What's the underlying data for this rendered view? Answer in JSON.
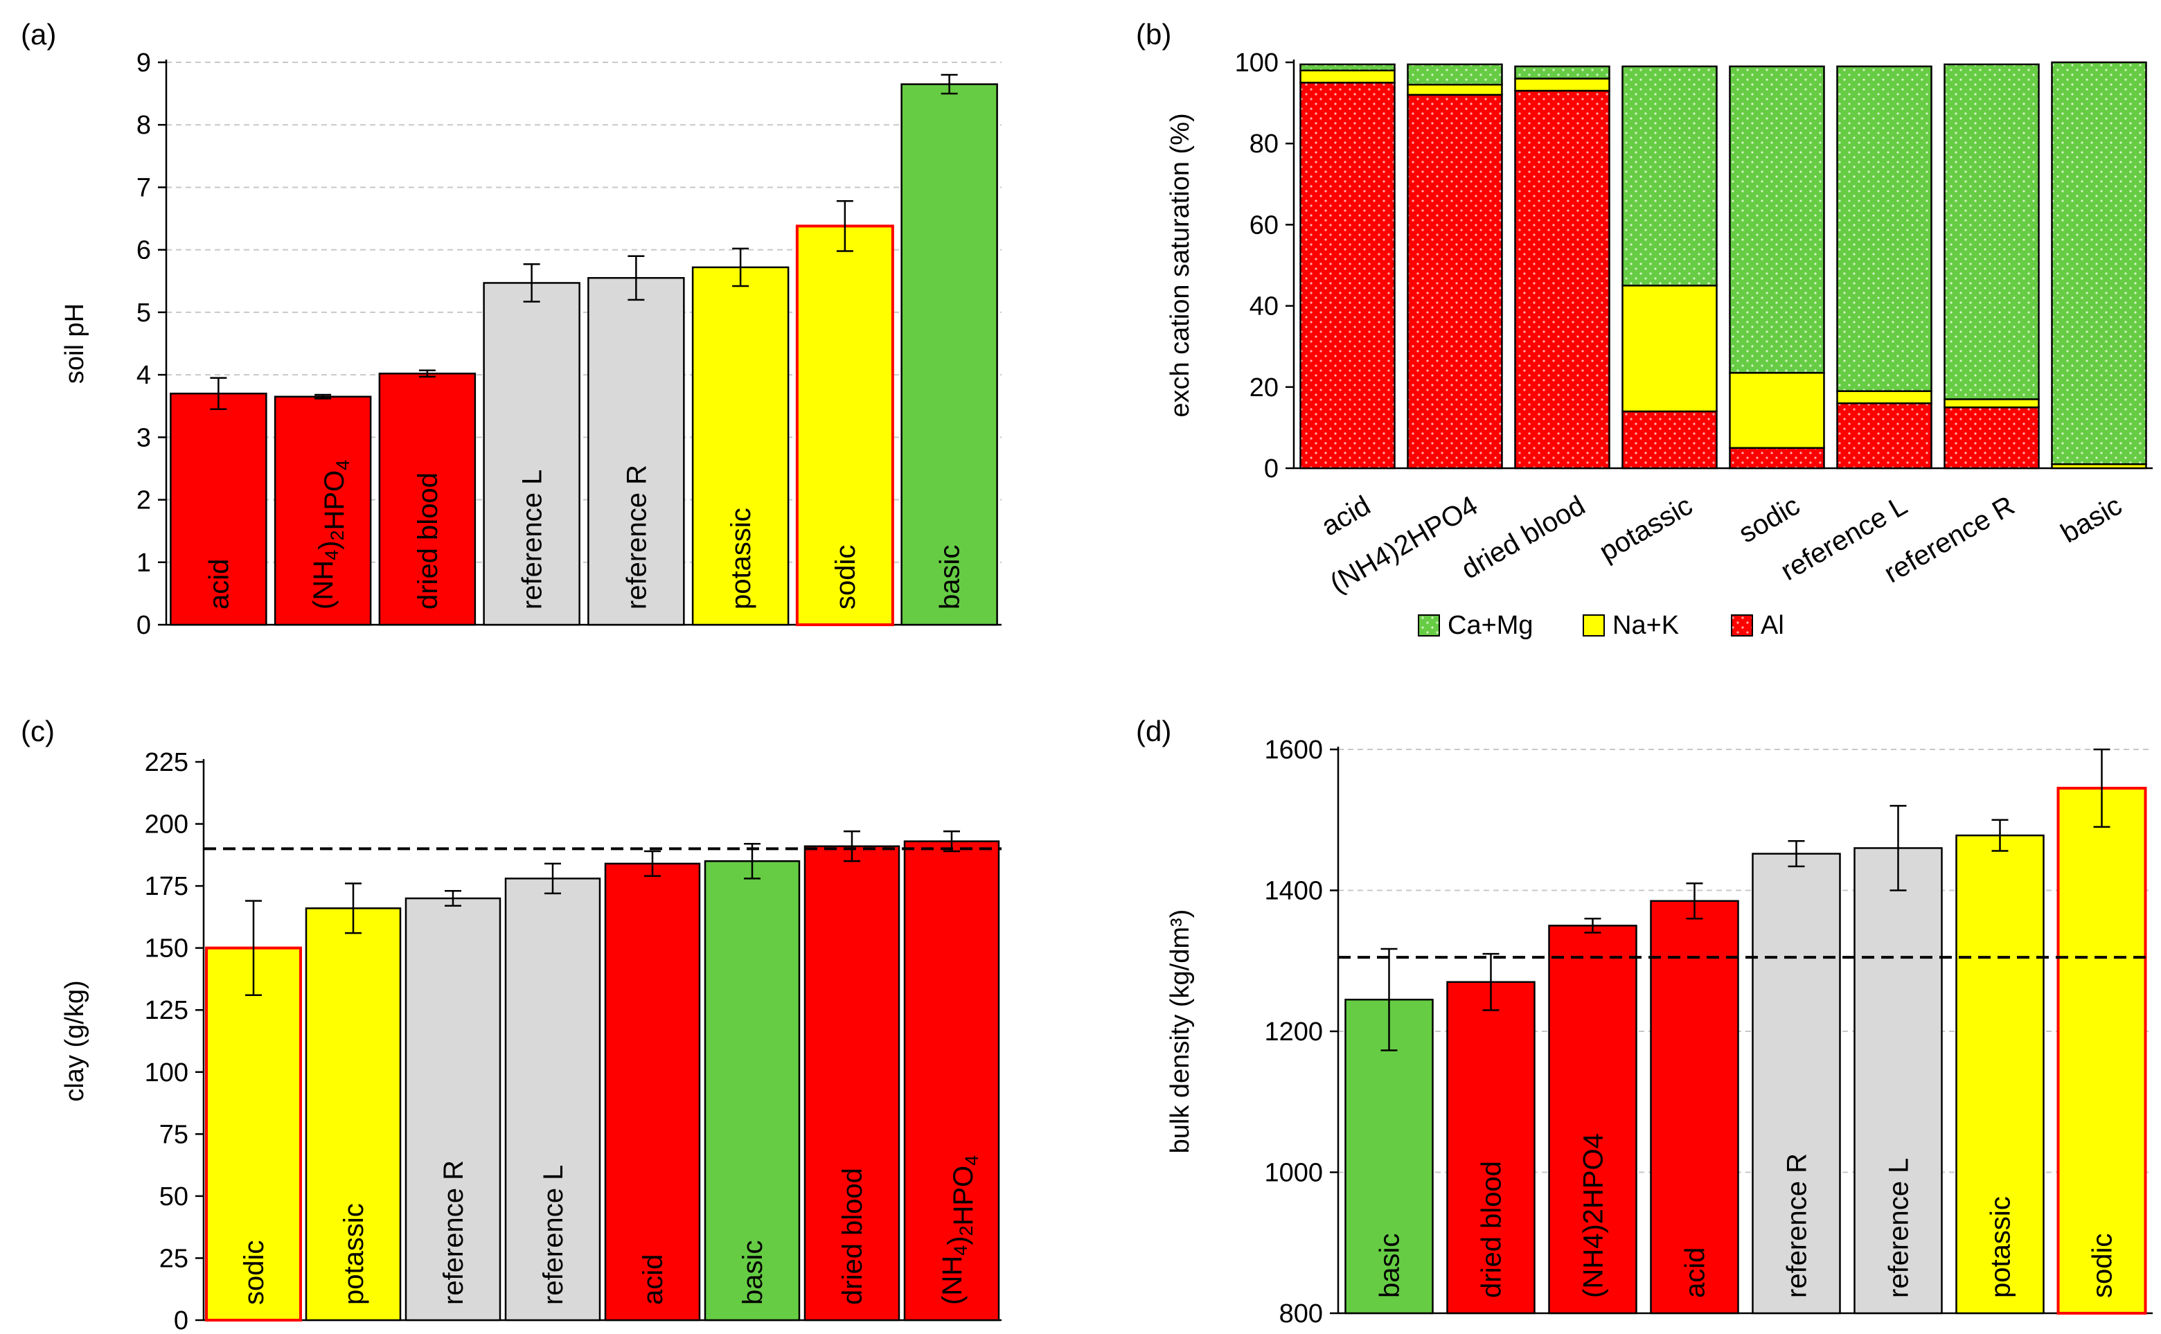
{
  "panel_labels": [
    "(a)",
    "(b)",
    "(c)",
    "(d)"
  ],
  "colors": {
    "acid": "#ff0000",
    "ammonium": "#ff0000",
    "blood": "#ff0000",
    "refL": "#d9d9d9",
    "refR": "#d9d9d9",
    "potassic": "#ffff00",
    "sodic": "#ffff00",
    "basic": "#66cc44",
    "camg": "#66cc44",
    "nak": "#ffff00",
    "al": "#ff0000",
    "sodic_outline": "#ff0000"
  },
  "chart_data": [
    {
      "id": "a",
      "type": "bar",
      "ylabel": "soil pH",
      "ylim": [
        0,
        9
      ],
      "yticks": [
        0,
        1,
        2,
        3,
        4,
        5,
        6,
        7,
        8,
        9
      ],
      "grid": true,
      "categories": [
        "acid",
        "(NH4)2HPO4",
        "dried blood",
        "reference L",
        "reference R",
        "potassic",
        "sodic",
        "basic"
      ],
      "category_labels": [
        {
          "t": "acid"
        },
        {
          "t": "(NH",
          "sub1": "4",
          "mid": ")",
          "sub2": "2",
          "end": "HPO",
          "sub3": "4"
        },
        {
          "t": "dried blood"
        },
        {
          "t": "reference L"
        },
        {
          "t": "reference R"
        },
        {
          "t": "potassic"
        },
        {
          "t": "sodic"
        },
        {
          "t": "basic"
        }
      ],
      "values": [
        3.7,
        3.65,
        4.02,
        5.47,
        5.55,
        5.72,
        6.38,
        8.65
      ],
      "errors": [
        0.25,
        0.03,
        0.05,
        0.3,
        0.35,
        0.3,
        0.4,
        0.15
      ],
      "color_keys": [
        "acid",
        "ammonium",
        "blood",
        "refL",
        "refR",
        "potassic",
        "sodic",
        "basic"
      ],
      "red_outline": [
        false,
        false,
        false,
        false,
        false,
        false,
        true,
        false
      ]
    },
    {
      "id": "b",
      "type": "stacked-bar",
      "ylabel": "exch cation saturation (%)",
      "ylim": [
        0,
        100
      ],
      "yticks": [
        0,
        20,
        40,
        60,
        80,
        100
      ],
      "grid": false,
      "categories": [
        "acid",
        "(NH4)2HPO4",
        "dried blood",
        "potassic",
        "sodic",
        "reference L",
        "reference R",
        "basic"
      ],
      "series": [
        {
          "name": "Al",
          "color_key": "al",
          "values": [
            95,
            92,
            93,
            14,
            5,
            16,
            15,
            0
          ]
        },
        {
          "name": "Na+K",
          "color_key": "nak",
          "values": [
            3,
            2.5,
            3,
            31,
            18.5,
            3,
            2,
            1
          ]
        },
        {
          "name": "Ca+Mg",
          "color_key": "camg",
          "values": [
            1.5,
            5,
            3,
            54,
            75.5,
            80,
            82.5,
            99
          ]
        }
      ],
      "legend": [
        "Ca+Mg",
        "Na+K",
        "Al"
      ],
      "legend_position": "bottom"
    },
    {
      "id": "c",
      "type": "bar",
      "ylabel": "clay  (g/kg)",
      "ylim": [
        0,
        225
      ],
      "yticks": [
        0,
        25,
        50,
        75,
        100,
        125,
        150,
        175,
        200,
        225
      ],
      "grid": false,
      "reference_line": 190,
      "categories": [
        "sodic",
        "potassic",
        "reference R",
        "reference L",
        "acid",
        "basic",
        "dried blood",
        "(NH4)2HPO4"
      ],
      "category_labels": [
        {
          "t": "sodic"
        },
        {
          "t": "potassic"
        },
        {
          "t": "reference R"
        },
        {
          "t": "reference L"
        },
        {
          "t": "acid"
        },
        {
          "t": "basic"
        },
        {
          "t": "dried blood"
        },
        {
          "t": "(NH",
          "sub1": "4",
          "mid": ")",
          "sub2": "2",
          "end": "HPO",
          "sub3": "4"
        }
      ],
      "values": [
        150,
        166,
        170,
        178,
        184,
        185,
        191,
        193
      ],
      "errors": [
        19,
        10,
        3,
        6,
        5,
        7,
        6,
        4
      ],
      "color_keys": [
        "sodic",
        "potassic",
        "refR",
        "refL",
        "acid",
        "basic",
        "blood",
        "ammonium"
      ],
      "red_outline": [
        true,
        false,
        false,
        false,
        false,
        false,
        false,
        false
      ]
    },
    {
      "id": "d",
      "type": "bar",
      "ylabel": "bulk density (kg/dm³)",
      "ylim": [
        800,
        1600
      ],
      "yticks": [
        800,
        1000,
        1200,
        1400,
        1600
      ],
      "grid": true,
      "reference_line": 1305,
      "categories": [
        "basic",
        "dried blood",
        "(NH4)2HPO4",
        "acid",
        "reference R",
        "reference L",
        "potassic",
        "sodic"
      ],
      "category_labels": [
        {
          "t": "basic"
        },
        {
          "t": "dried blood"
        },
        {
          "t": "(NH4)2HPO4"
        },
        {
          "t": "acid"
        },
        {
          "t": "reference R"
        },
        {
          "t": "reference L"
        },
        {
          "t": "potassic"
        },
        {
          "t": "sodic"
        }
      ],
      "values": [
        1245,
        1270,
        1350,
        1385,
        1452,
        1460,
        1478,
        1545
      ],
      "errors": [
        72,
        40,
        10,
        25,
        18,
        60,
        22,
        55
      ],
      "color_keys": [
        "basic",
        "blood",
        "ammonium",
        "acid",
        "refR",
        "refL",
        "potassic",
        "sodic"
      ],
      "red_outline": [
        false,
        false,
        false,
        false,
        false,
        false,
        false,
        true
      ]
    }
  ]
}
